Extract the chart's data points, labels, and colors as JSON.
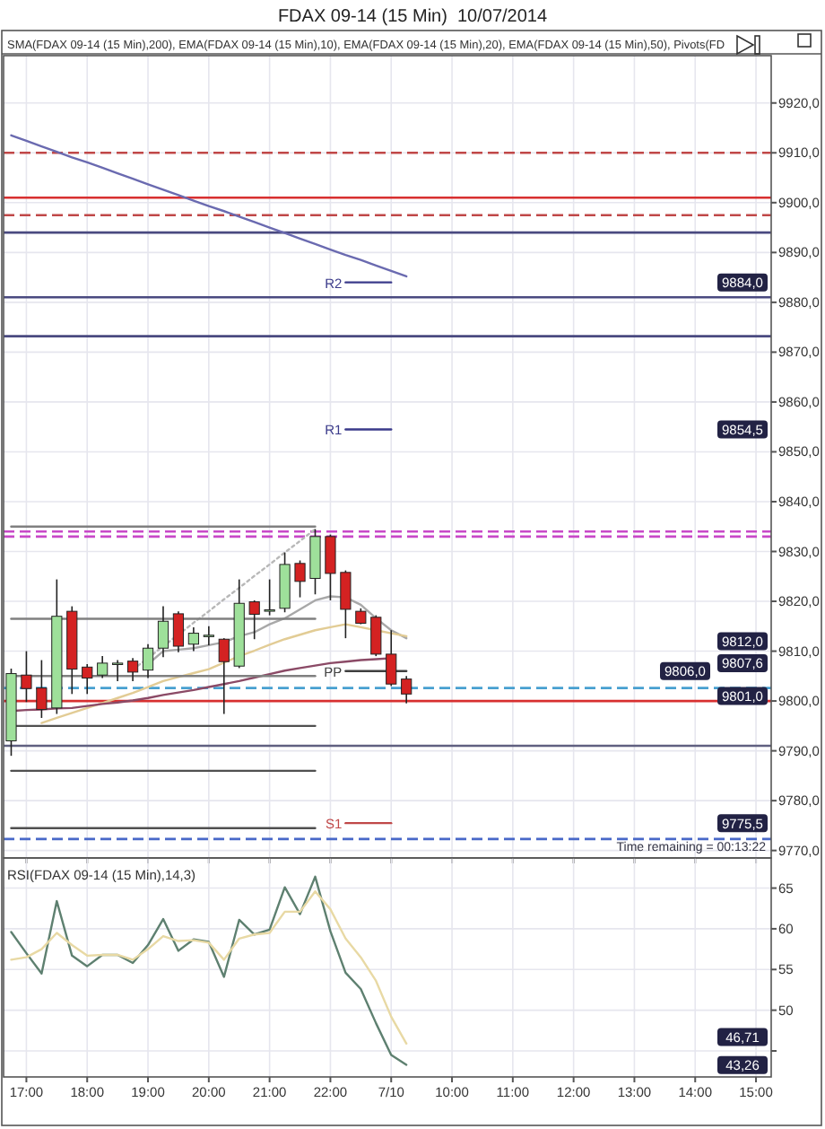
{
  "chart_data": [
    {
      "type": "candlestick",
      "title": "FDAX 09-14 (15 Min)  10/07/2014",
      "categories": [
        null,
        null,
        null,
        null,
        null,
        null,
        null,
        null,
        null,
        null,
        null,
        null,
        null,
        null,
        null,
        null,
        null,
        null,
        null,
        null,
        null,
        null,
        null,
        null,
        null,
        null,
        null,
        null,
        null,
        null,
        null,
        null,
        null,
        null,
        null,
        null,
        null,
        null,
        null,
        null,
        null,
        null,
        null,
        null,
        null,
        null,
        null,
        null,
        null,
        null
      ],
      "ohlc": [
        [
          9792,
          9806.5,
          9789,
          9805.5
        ],
        [
          9805.2,
          9810,
          9799.8,
          9802.5
        ],
        [
          9802.6,
          9808.2,
          9796.6,
          9798.3
        ],
        [
          9798.6,
          9824.4,
          9797.4,
          9817
        ],
        [
          9818,
          9819,
          9801.4,
          9806.4
        ],
        [
          9806.8,
          9807.4,
          9801.4,
          9804.6
        ],
        [
          9805.2,
          9809,
          9804.6,
          9807.6
        ],
        [
          9807.4,
          9808.2,
          9804,
          9807.6
        ],
        [
          9808,
          9808.6,
          9804,
          9805.8
        ],
        [
          9806.2,
          9811.4,
          9804.6,
          9810.6
        ],
        [
          9810.6,
          9819,
          9808.8,
          9816
        ],
        [
          9817.5,
          9818,
          9809.8,
          9811
        ],
        [
          9811.4,
          9814.8,
          9810,
          9813.6
        ],
        [
          9813,
          9815,
          9811.2,
          9813.2
        ],
        [
          9812.4,
          9812.6,
          9797.4,
          9807.9
        ],
        [
          9807,
          9824.4,
          9806.6,
          9819.6
        ],
        [
          9819.9,
          9820.2,
          9812.4,
          9817.4
        ],
        [
          9818.2,
          9824.4,
          9817.2,
          9818.3
        ],
        [
          9818.6,
          9829.8,
          9817.8,
          9827.4
        ],
        [
          9827.6,
          9828.2,
          9820.8,
          9824
        ],
        [
          9824.6,
          9834.5,
          9821.4,
          9833
        ],
        [
          9833,
          9833.4,
          9820.2,
          9825.6
        ],
        [
          9825.8,
          9826.2,
          9812.6,
          9818.4
        ],
        [
          9818,
          9818.6,
          9815.4,
          9815.6
        ],
        [
          9816.8,
          9817.2,
          9809,
          9809.4
        ],
        [
          9809.4,
          9814.2,
          9803,
          9803.4
        ],
        [
          9804.4,
          9805,
          9799.5,
          9801.4
        ],
        null,
        null,
        null,
        null,
        null,
        null,
        null,
        null,
        null,
        null,
        null,
        null,
        null,
        null,
        null,
        null,
        null,
        null,
        null,
        null,
        null,
        null,
        null
      ],
      "series": [
        {
          "type": "line",
          "color": "#6a6ab0",
          "values": [
            9913.5,
            9912.4,
            9911.3,
            9910.2,
            9909.1,
            9908.1,
            9907,
            9905.9,
            9904.8,
            9903.7,
            9902.6,
            9901.5,
            9900.4,
            9899.3,
            9898.3,
            9897.2,
            9896.1,
            9895,
            9893.9,
            9892.8,
            9891.7,
            9890.6,
            9889.5,
            9888.5,
            9887.4,
            9886.3,
            9885.2,
            null,
            null,
            null,
            null,
            null,
            null,
            null,
            null,
            null,
            null,
            null,
            null,
            null,
            null,
            null,
            null,
            null,
            null,
            null,
            null,
            null,
            null,
            null
          ]
        },
        {
          "type": "line",
          "color": "#a8a8a8",
          "values": [
            null,
            null,
            null,
            null,
            null,
            null,
            null,
            null,
            null,
            9807.4,
            9810,
            9810.3,
            9810.6,
            9811.2,
            9811.8,
            9813,
            9813.8,
            9815.4,
            9816.6,
            9818.4,
            9820.2,
            9821,
            9820.8,
            9819.3,
            9816.6,
            9814.2,
            9812.6,
            null,
            null,
            null,
            null,
            null,
            null,
            null,
            null,
            null,
            null,
            null,
            null,
            null,
            null,
            null,
            null,
            null,
            null,
            null,
            null,
            null,
            null,
            null
          ]
        },
        {
          "type": "line",
          "color": "#e2cc95",
          "values": [
            null,
            null,
            9795.6,
            9796.6,
            9797.6,
            9798.6,
            9799.6,
            9800.6,
            9801.6,
            9802.8,
            9804,
            9804.8,
            9805.6,
            9806.4,
            9807.7,
            9809,
            9810.1,
            9811.3,
            9812.4,
            9813.3,
            9814.2,
            9814.8,
            9815.4,
            9814.8,
            9814.2,
            9813.6,
            9813,
            null,
            null,
            null,
            null,
            null,
            null,
            null,
            null,
            null,
            null,
            null,
            null,
            null,
            null,
            null,
            null,
            null,
            null,
            null,
            null,
            null,
            null,
            null
          ]
        },
        {
          "type": "line",
          "color": "#8b4a66",
          "values": [
            9798,
            9798.2,
            9798.3,
            9798.5,
            9798.6,
            9799,
            9799.4,
            9799.7,
            9800.1,
            9800.6,
            9801.2,
            9801.7,
            9802.2,
            9802.8,
            9803.4,
            9804,
            9804.7,
            9805.4,
            9806.1,
            9806.6,
            9807.1,
            9807.6,
            9807.9,
            9808.2,
            9808.4,
            9808.6,
            null,
            null,
            null,
            null,
            null,
            null,
            null,
            null,
            null,
            null,
            null,
            null,
            null,
            null,
            null,
            null,
            null,
            null,
            null,
            null,
            null,
            null,
            null,
            null
          ]
        },
        {
          "type": "line",
          "color": "#b8b8b8",
          "line_style": "dotted",
          "values": [
            null,
            null,
            null,
            null,
            null,
            null,
            null,
            null,
            9806.3,
            9808.6,
            9811,
            9813.3,
            9815.7,
            9818,
            9820.4,
            9822.7,
            9825.1,
            9827.4,
            9829.8,
            9832.1,
            9834.5,
            null,
            null,
            null,
            null,
            null,
            null,
            null,
            null,
            null,
            null,
            null,
            null,
            null,
            null,
            null,
            null,
            null,
            null,
            null,
            null,
            null,
            null,
            null,
            null,
            null,
            null,
            null,
            null,
            null
          ]
        },
        {
          "type": "line",
          "color": "#808080",
          "values": [
            9835,
            9835,
            9835,
            9835,
            9835,
            9835,
            9835,
            9835,
            9835,
            9835,
            9835,
            9835,
            9835,
            9835,
            9835,
            9835,
            9835,
            9835,
            9835,
            9835,
            9835,
            null,
            null,
            null,
            null,
            null,
            null,
            null,
            null,
            null,
            null,
            null,
            null,
            null,
            null,
            null,
            null,
            null,
            null,
            null,
            null,
            null,
            null,
            null,
            null,
            null,
            null,
            null,
            null,
            null
          ]
        },
        {
          "type": "line",
          "color": "#808080",
          "values": [
            9816.5,
            9816.5,
            9816.5,
            9816.5,
            9816.5,
            9816.5,
            9816.5,
            9816.5,
            9816.5,
            9816.5,
            9816.5,
            9816.5,
            9816.5,
            9816.5,
            9816.5,
            9816.5,
            9816.5,
            9816.5,
            9816.5,
            9816.5,
            9816.5,
            null,
            null,
            null,
            null,
            null,
            null,
            null,
            null,
            null,
            null,
            null,
            null,
            null,
            null,
            null,
            null,
            null,
            null,
            null,
            null,
            null,
            null,
            null,
            null,
            null,
            null,
            null,
            null,
            null
          ]
        },
        {
          "type": "line",
          "color": "#808080",
          "values": [
            9805,
            9805,
            9805,
            9805,
            9805,
            9805,
            9805,
            9805,
            9805,
            9805,
            9805,
            9805,
            9805,
            9805,
            9805,
            9805,
            9805,
            9805,
            9805,
            9805,
            9805,
            null,
            null,
            null,
            null,
            null,
            null,
            null,
            null,
            null,
            null,
            null,
            null,
            null,
            null,
            null,
            null,
            null,
            null,
            null,
            null,
            null,
            null,
            null,
            null,
            null,
            null,
            null,
            null,
            null
          ]
        },
        {
          "type": "line",
          "color": "#505050",
          "values": [
            9795,
            9795,
            9795,
            9795,
            9795,
            9795,
            9795,
            9795,
            9795,
            9795,
            9795,
            9795,
            9795,
            9795,
            9795,
            9795,
            9795,
            9795,
            9795,
            9795,
            9795,
            null,
            null,
            null,
            null,
            null,
            null,
            null,
            null,
            null,
            null,
            null,
            null,
            null,
            null,
            null,
            null,
            null,
            null,
            null,
            null,
            null,
            null,
            null,
            null,
            null,
            null,
            null,
            null,
            null
          ]
        },
        {
          "type": "line",
          "color": "#505050",
          "values": [
            9786,
            9786,
            9786,
            9786,
            9786,
            9786,
            9786,
            9786,
            9786,
            9786,
            9786,
            9786,
            9786,
            9786,
            9786,
            9786,
            9786,
            9786,
            9786,
            9786,
            9786,
            null,
            null,
            null,
            null,
            null,
            null,
            null,
            null,
            null,
            null,
            null,
            null,
            null,
            null,
            null,
            null,
            null,
            null,
            null,
            null,
            null,
            null,
            null,
            null,
            null,
            null,
            null,
            null,
            null
          ]
        },
        {
          "type": "line",
          "color": "#505050",
          "values": [
            9774.5,
            9774.5,
            9774.5,
            9774.5,
            9774.5,
            9774.5,
            9774.5,
            9774.5,
            9774.5,
            9774.5,
            9774.5,
            9774.5,
            9774.5,
            9774.5,
            9774.5,
            9774.5,
            9774.5,
            9774.5,
            9774.5,
            9774.5,
            9774.5,
            null,
            null,
            null,
            null,
            null,
            null,
            null,
            null,
            null,
            null,
            null,
            null,
            null,
            null,
            null,
            null,
            null,
            null,
            null,
            null,
            null,
            null,
            null,
            null,
            null,
            null,
            null,
            null,
            null
          ]
        },
        {
          "type": "line",
          "name": "R2",
          "color": "#3a3a8a",
          "values": [
            null,
            null,
            null,
            null,
            null,
            null,
            null,
            null,
            null,
            null,
            null,
            null,
            null,
            null,
            null,
            null,
            null,
            null,
            null,
            null,
            null,
            null,
            9884,
            9884,
            9884,
            9884,
            null,
            null,
            null,
            null,
            null,
            null,
            null,
            null,
            null,
            null,
            null,
            null,
            null,
            null,
            null,
            null,
            null,
            null,
            null,
            null,
            null,
            null,
            null,
            null
          ]
        },
        {
          "type": "line",
          "name": "R1",
          "color": "#3a3a8a",
          "values": [
            null,
            null,
            null,
            null,
            null,
            null,
            null,
            null,
            null,
            null,
            null,
            null,
            null,
            null,
            null,
            null,
            null,
            null,
            null,
            null,
            null,
            null,
            9854.5,
            9854.5,
            9854.5,
            9854.5,
            null,
            null,
            null,
            null,
            null,
            null,
            null,
            null,
            null,
            null,
            null,
            null,
            null,
            null,
            null,
            null,
            null,
            null,
            null,
            null,
            null,
            null,
            null,
            null
          ]
        },
        {
          "type": "line",
          "name": "PP",
          "color": "#404040",
          "values": [
            null,
            null,
            null,
            null,
            null,
            null,
            null,
            null,
            null,
            null,
            null,
            null,
            null,
            null,
            null,
            null,
            null,
            null,
            null,
            null,
            null,
            null,
            9806,
            9806,
            9806,
            9806,
            9806,
            null,
            null,
            null,
            null,
            null,
            null,
            null,
            null,
            null,
            null,
            null,
            null,
            null,
            null,
            null,
            null,
            null,
            null,
            null,
            null,
            null,
            null,
            null
          ]
        },
        {
          "type": "line",
          "name": "S1",
          "color": "#c04848",
          "values": [
            null,
            null,
            null,
            null,
            null,
            null,
            null,
            null,
            null,
            null,
            null,
            null,
            null,
            null,
            null,
            null,
            null,
            null,
            null,
            null,
            null,
            null,
            9775.5,
            9775.5,
            9775.5,
            9775.5,
            null,
            null,
            null,
            null,
            null,
            null,
            null,
            null,
            null,
            null,
            null,
            null,
            null,
            null,
            null,
            null,
            null,
            null,
            null,
            null,
            null,
            null,
            null,
            null
          ]
        }
      ],
      "ref_lines": [
        {
          "axis": "y",
          "value": 9910,
          "color": "#c04848",
          "line_style": "dashed"
        },
        {
          "axis": "y",
          "value": 9901,
          "color": "#d83030",
          "line_style": "solid"
        },
        {
          "axis": "y",
          "value": 9897.5,
          "color": "#c04848",
          "line_style": "dashed"
        },
        {
          "axis": "y",
          "value": 9894,
          "color": "#4a4a80",
          "line_style": "solid"
        },
        {
          "axis": "y",
          "value": 9881,
          "color": "#4a4a80",
          "line_style": "solid"
        },
        {
          "axis": "y",
          "value": 9873.2,
          "color": "#4a4a80",
          "line_style": "solid"
        },
        {
          "axis": "y",
          "value": 9834,
          "color": "#c848c8",
          "line_style": "dashed"
        },
        {
          "axis": "y",
          "value": 9833,
          "color": "#c848c8",
          "line_style": "dashed"
        },
        {
          "axis": "y",
          "value": 9802.6,
          "color": "#48a0d0",
          "line_style": "dashed"
        },
        {
          "axis": "y",
          "value": 9800,
          "color": "#d83030",
          "line_style": "solid"
        },
        {
          "axis": "y",
          "value": 9791,
          "color": "#606080",
          "line_style": "solid"
        },
        {
          "axis": "y",
          "value": 9772.3,
          "color": "#4868c8",
          "line_style": "dashed"
        }
      ],
      "annotations": [
        "SMA(FDAX 09-14 (15 Min),200), EMA(FDAX 09-14 (15 Min),10), EMA(FDAX 09-14 (15 Min),20), EMA(FDAX 09-14 (15 Min),50), Pivots(FD",
        "Time remaining = 00:13:22",
        {
          "text": "9884,0",
          "y": 9884
        },
        {
          "text": "9854,5",
          "y": 9854.5
        },
        {
          "text": "9812,0",
          "y": 9812
        },
        {
          "text": "9807,6",
          "y": 9807.6
        },
        {
          "text": "9806,0",
          "y": 9806
        },
        {
          "text": "9801,0",
          "y": 9801
        },
        {
          "text": "9775,5",
          "y": 9775.5
        }
      ],
      "ylim": [
        9768.5,
        9929.5
      ],
      "yticks": [
        {
          "value": 9770,
          "label": "9770,0"
        },
        {
          "value": 9780,
          "label": "9780,0"
        },
        {
          "value": 9790,
          "label": "9790,0"
        },
        {
          "value": 9800,
          "label": "9800,0"
        },
        {
          "value": 9810,
          "label": "9810,0"
        },
        {
          "value": 9820,
          "label": "9820,0"
        },
        {
          "value": 9830,
          "label": "9830,0"
        },
        {
          "value": 9840,
          "label": "9840,0"
        },
        {
          "value": 9850,
          "label": "9850,0"
        },
        {
          "value": 9860,
          "label": "9860,0"
        },
        {
          "value": 9870,
          "label": "9870,0"
        },
        {
          "value": 9880,
          "label": "9880,0"
        },
        {
          "value": 9890,
          "label": "9890,0"
        },
        {
          "value": 9900,
          "label": "9900,0"
        },
        {
          "value": 9910,
          "label": "9910,0"
        },
        {
          "value": 9920,
          "label": "9920,0"
        }
      ],
      "grid": true,
      "tick_labels": "y"
    },
    {
      "type": "line",
      "title": "RSI(FDAX 09-14 (15 Min),14,3)",
      "categories": [
        null,
        "17:00",
        null,
        null,
        null,
        "18:00",
        null,
        null,
        null,
        "19:00",
        null,
        null,
        null,
        "20:00",
        null,
        null,
        null,
        "21:00",
        null,
        null,
        null,
        "22:00",
        null,
        null,
        null,
        "7/10",
        null,
        null,
        null,
        "10:00",
        null,
        null,
        null,
        "11:00",
        null,
        null,
        null,
        "12:00",
        null,
        null,
        null,
        "13:00",
        null,
        null,
        null,
        "14:00",
        null,
        null,
        null,
        "15:00"
      ],
      "series": [
        {
          "color": "#5e8070",
          "values": [
            59.6,
            57,
            54.5,
            63.4,
            56.7,
            55.4,
            56.8,
            56.8,
            55.8,
            58,
            61.2,
            57.3,
            58.7,
            58.4,
            54.1,
            61.1,
            59.3,
            59.9,
            65.1,
            61.8,
            66.4,
            59.7,
            54.6,
            52.6,
            48.4,
            44.5,
            43.3,
            null,
            null,
            null,
            null,
            null,
            null,
            null,
            null,
            null,
            null,
            null,
            null,
            null,
            null,
            null,
            null,
            null,
            null,
            null,
            null,
            null,
            null,
            null
          ]
        },
        {
          "color": "#e8d9a4",
          "values": [
            56.2,
            56.5,
            57.5,
            59.5,
            58,
            56.7,
            56.8,
            56.8,
            56.2,
            57.5,
            59.1,
            58.5,
            58.6,
            58.3,
            56.2,
            58.8,
            59.3,
            59.5,
            62.1,
            62.1,
            64.6,
            62.4,
            58.8,
            56.5,
            53.6,
            49.2,
            45.9,
            null,
            null,
            null,
            null,
            null,
            null,
            null,
            null,
            null,
            null,
            null,
            null,
            null,
            null,
            null,
            null,
            null,
            null,
            null,
            null,
            null,
            null,
            null
          ]
        }
      ],
      "annotations": [
        {
          "text": "46,71",
          "y": 46.71
        },
        {
          "text": "43,26",
          "y": 43.26
        }
      ],
      "ylim": [
        41.8,
        68.7
      ],
      "yticks": [
        {
          "value": 45,
          "label": null
        },
        50,
        55,
        60,
        65
      ],
      "grid": true
    }
  ]
}
